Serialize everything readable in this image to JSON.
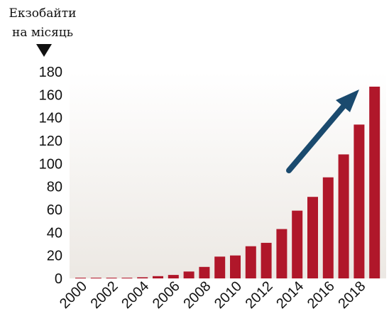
{
  "chart_data": {
    "type": "bar",
    "ylabel_lines": [
      "Екзобайти",
      "на місяць"
    ],
    "categories": [
      "2000",
      "2001",
      "2002",
      "2003",
      "2004",
      "2005",
      "2006",
      "2007",
      "2008",
      "2009",
      "2010",
      "2011",
      "2012",
      "2013",
      "2014",
      "2015",
      "2016",
      "2017",
      "2018",
      "2019"
    ],
    "x_tick_labels": [
      "2000",
      "2002",
      "2004",
      "2006",
      "2008",
      "2010",
      "2012",
      "2014",
      "2016",
      "2018"
    ],
    "values": [
      0.1,
      0.2,
      0.3,
      0.5,
      1,
      2,
      3,
      6,
      10,
      19,
      20,
      28,
      31,
      43,
      59,
      71,
      88,
      108,
      134,
      167
    ],
    "ylim": [
      0,
      180
    ],
    "y_ticks": [
      0,
      20,
      40,
      60,
      80,
      100,
      120,
      140,
      160,
      180
    ],
    "grid": false,
    "legend": "none",
    "bar_color": "#b0172a",
    "arrow_color": "#1a4a6e",
    "plot_background": [
      "#ffffff",
      "#ece8e3"
    ]
  }
}
